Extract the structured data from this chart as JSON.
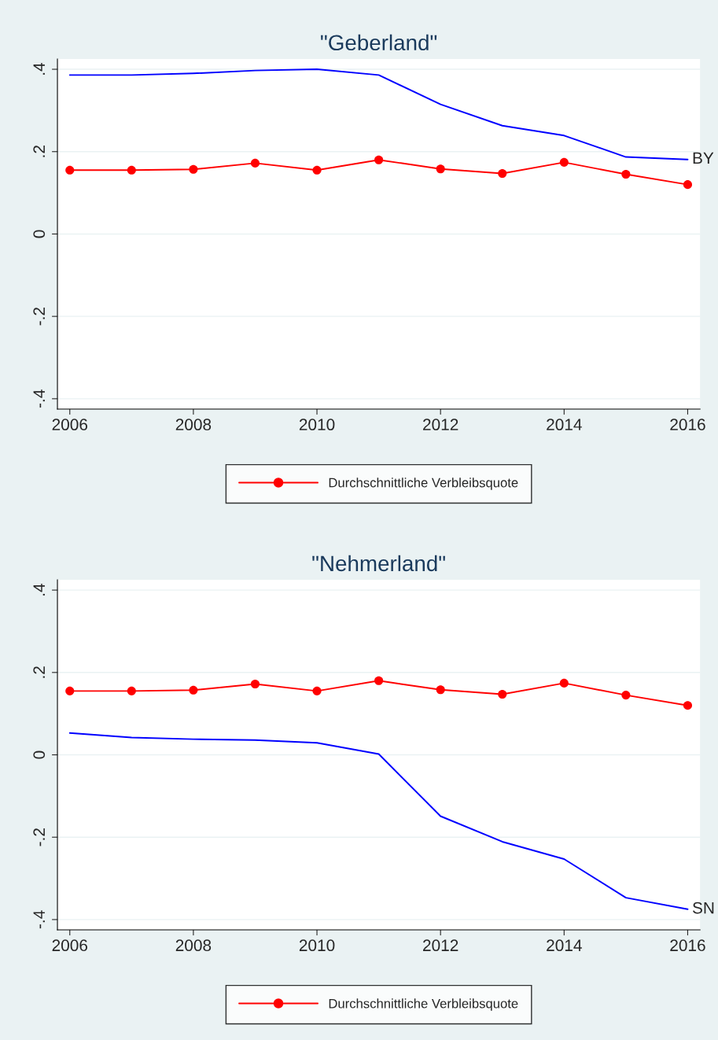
{
  "chart_data": [
    {
      "type": "line",
      "title": "\"Geberland\"",
      "x": [
        2006,
        2007,
        2008,
        2009,
        2010,
        2011,
        2012,
        2013,
        2014,
        2015,
        2016
      ],
      "series": [
        {
          "color": "#0000ff",
          "marker": "none",
          "values": [
            0.386,
            0.386,
            0.39,
            0.397,
            0.4,
            0.386,
            0.315,
            0.263,
            0.239,
            0.187,
            0.181
          ]
        },
        {
          "name": "Durchschnittliche Verbleibsquote",
          "color": "#ff0000",
          "marker": "circle",
          "values": [
            0.155,
            0.155,
            0.157,
            0.172,
            0.155,
            0.18,
            0.158,
            0.147,
            0.174,
            0.145,
            0.12
          ]
        }
      ],
      "annotations": [
        {
          "text": "BY",
          "x": 2016,
          "y": 0.181
        }
      ],
      "xlim": [
        2005.8,
        2016.2
      ],
      "xticks": [
        2006,
        2008,
        2010,
        2012,
        2014,
        2016
      ],
      "ylim": [
        -0.425,
        0.425
      ],
      "yticks": [
        {
          "value": 0.4,
          "label": ".4"
        },
        {
          "value": 0.2,
          "label": ".2"
        },
        0,
        {
          "value": -0.2,
          "label": "-.2"
        },
        {
          "value": -0.4,
          "label": "-.4"
        }
      ],
      "grid": "y",
      "legend": "bottom"
    },
    {
      "type": "line",
      "title": "\"Nehmerland\"",
      "x": [
        2006,
        2007,
        2008,
        2009,
        2010,
        2011,
        2012,
        2013,
        2014,
        2015,
        2016
      ],
      "series": [
        {
          "color": "#0000ff",
          "marker": "none",
          "values": [
            0.053,
            0.042,
            0.038,
            0.036,
            0.029,
            0.002,
            -0.149,
            -0.211,
            -0.253,
            -0.347,
            -0.375
          ]
        },
        {
          "name": "Durchschnittliche Verbleibsquote",
          "color": "#ff0000",
          "marker": "circle",
          "values": [
            0.155,
            0.155,
            0.157,
            0.172,
            0.155,
            0.18,
            0.158,
            0.147,
            0.174,
            0.145,
            0.12
          ]
        }
      ],
      "annotations": [
        {
          "text": "SN",
          "x": 2016,
          "y": -0.375
        }
      ],
      "xlim": [
        2005.8,
        2016.2
      ],
      "xticks": [
        2006,
        2008,
        2010,
        2012,
        2014,
        2016
      ],
      "ylim": [
        -0.425,
        0.425
      ],
      "yticks": [
        {
          "value": 0.4,
          "label": ".4"
        },
        {
          "value": 0.2,
          "label": ".2"
        },
        0,
        {
          "value": -0.2,
          "label": "-.2"
        },
        {
          "value": -0.4,
          "label": "-.4"
        }
      ],
      "grid": "y",
      "legend": "bottom"
    }
  ]
}
